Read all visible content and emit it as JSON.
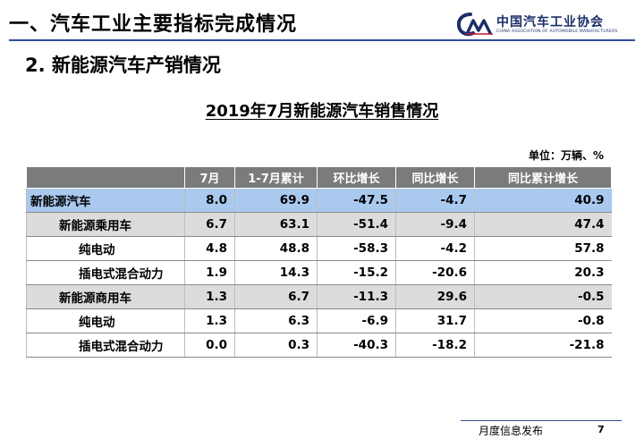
{
  "header": {
    "main_title": "一、汽车工业主要指标完成情况",
    "logo_cn": "中国汽车工业协会",
    "logo_en": "CHINA ASSOCIATION OF AUTOMOBILE MANUFACTURERS",
    "logo_mark_text": "CAM"
  },
  "section": {
    "sub_title": "2. 新能源汽车产销情况"
  },
  "table": {
    "title": "2019年7月新能源汽车销售情况",
    "unit": "单位：万辆、%",
    "columns": [
      "",
      "7月",
      "1-7月累计",
      "环比增长",
      "同比增长",
      "同比累计增长"
    ],
    "rows": [
      {
        "name": "新能源汽车",
        "level": 0,
        "values": [
          "8.0",
          "69.9",
          "-47.5",
          "-4.7",
          "40.9"
        ]
      },
      {
        "name": "新能源乘用车",
        "level": 1,
        "values": [
          "6.7",
          "63.1",
          "-51.4",
          "-9.4",
          "47.4"
        ]
      },
      {
        "name": "纯电动",
        "level": 2,
        "values": [
          "4.8",
          "48.8",
          "-58.3",
          "-4.2",
          "57.8"
        ]
      },
      {
        "name": "插电式混合动力",
        "level": 2,
        "values": [
          "1.9",
          "14.3",
          "-15.2",
          "-20.6",
          "20.3"
        ]
      },
      {
        "name": "新能源商用车",
        "level": 1,
        "values": [
          "1.3",
          "6.7",
          "-11.3",
          "29.6",
          "-0.5"
        ]
      },
      {
        "name": "纯电动",
        "level": 2,
        "values": [
          "1.3",
          "6.3",
          "-6.9",
          "31.7",
          "-0.8"
        ]
      },
      {
        "name": "插电式混合动力",
        "level": 2,
        "values": [
          "0.0",
          "0.3",
          "-40.3",
          "-18.2",
          "-21.8"
        ]
      }
    ]
  },
  "footer": {
    "label": "月度信息发布",
    "page_number": "7"
  },
  "colors": {
    "accent_blue": "#2e4c99",
    "logo_navy": "#1c2f6a",
    "header_gray": "#7b7b7b",
    "row_total_blue": "#a9c9ef",
    "row_sub_gray": "#dcdcdc"
  }
}
